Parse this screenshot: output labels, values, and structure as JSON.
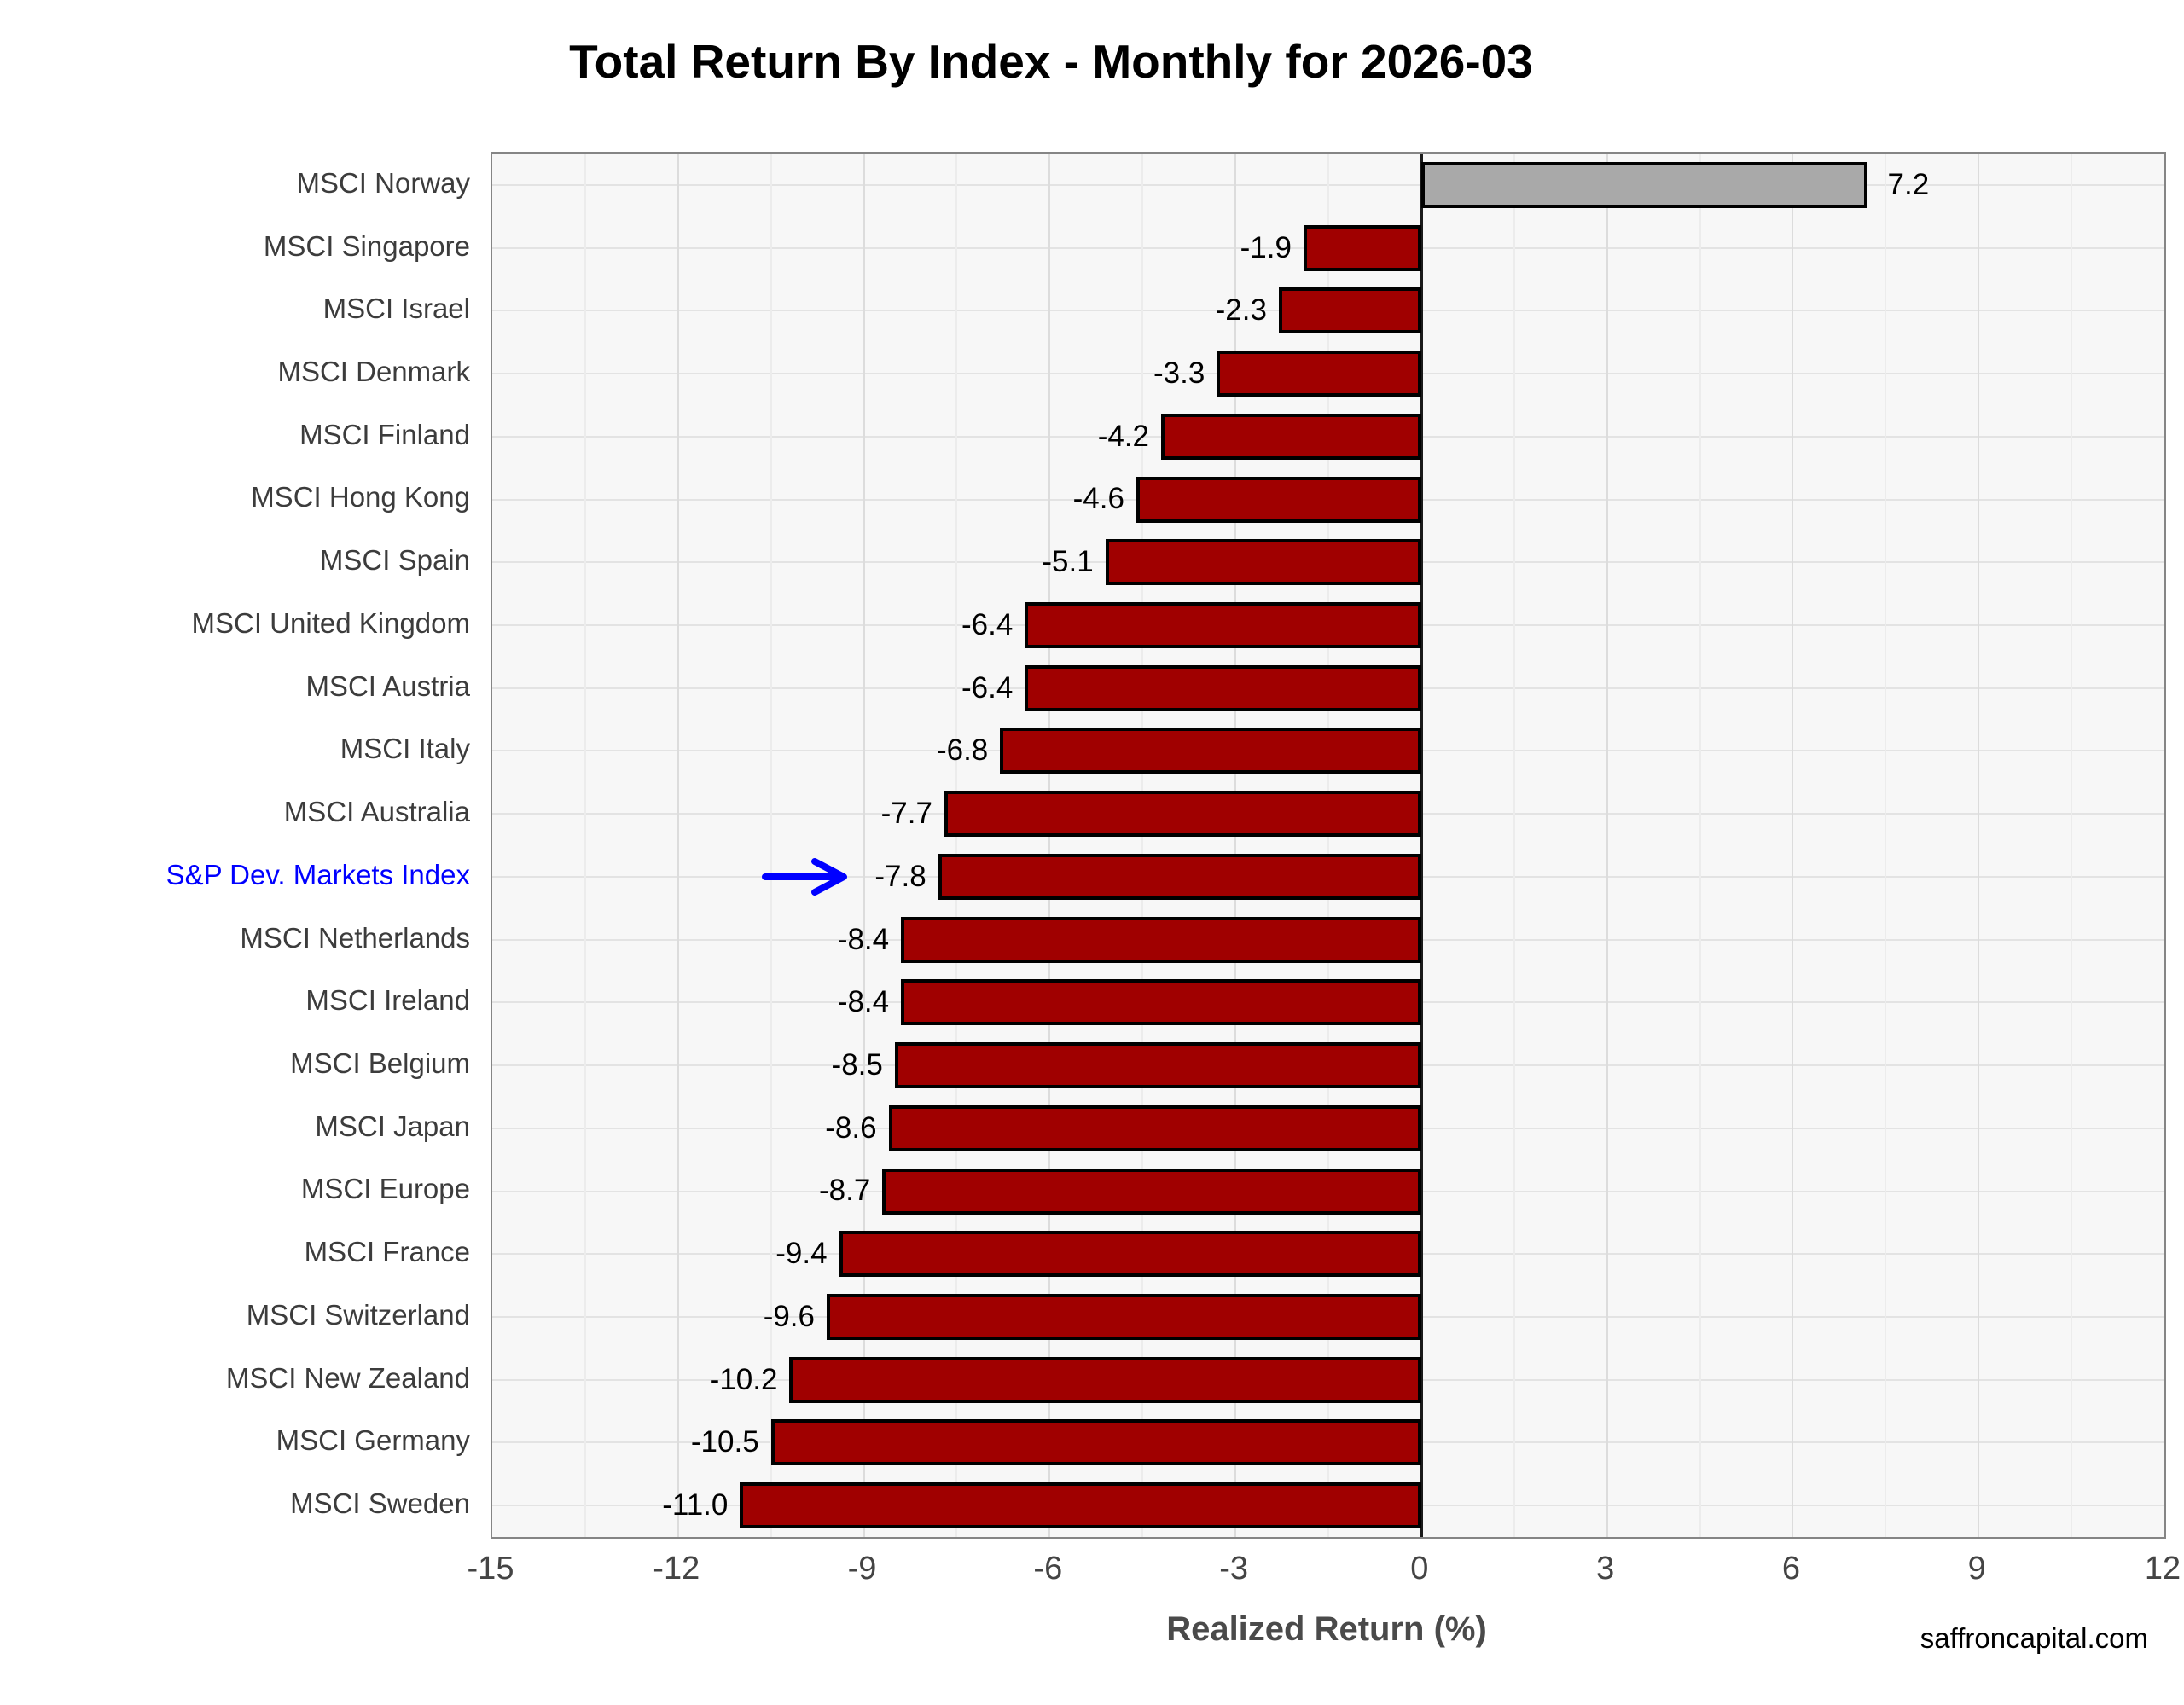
{
  "title": "Total Return By Index - Monthly for 2026-03",
  "footer": "saffroncapital.com",
  "colors": {
    "bar_negative": "#a00000",
    "bar_positive": "#a9a9a9",
    "bar_border": "#000000",
    "highlight_blue": "#0000ff",
    "panel_background": "#f7f7f7",
    "grid_major": "#dcdcdc",
    "grid_minor": "#ececec",
    "axis_text": "#444444",
    "label_text": "#3c3c3c"
  },
  "chart_data": {
    "type": "bar",
    "orientation": "horizontal",
    "title": "Total Return By Index - Monthly for 2026-03",
    "xlabel": "Realized Return (%)",
    "ylabel": "",
    "xlim": [
      -15,
      12
    ],
    "x_ticks": [
      -15,
      -12,
      -9,
      -6,
      -3,
      0,
      3,
      6,
      9,
      12
    ],
    "grid": true,
    "legend": false,
    "categories": [
      "MSCI Norway",
      "MSCI Singapore",
      "MSCI Israel",
      "MSCI Denmark",
      "MSCI Finland",
      "MSCI Hong Kong",
      "MSCI Spain",
      "MSCI United Kingdom",
      "MSCI Austria",
      "MSCI Italy",
      "MSCI Australia",
      "S&P Dev. Markets Index",
      "MSCI Netherlands",
      "MSCI Ireland",
      "MSCI Belgium",
      "MSCI Japan",
      "MSCI Europe",
      "MSCI France",
      "MSCI Switzerland",
      "MSCI New Zealand",
      "MSCI Germany",
      "MSCI Sweden"
    ],
    "values": [
      7.2,
      -1.9,
      -2.3,
      -3.3,
      -4.2,
      -4.6,
      -5.1,
      -6.4,
      -6.4,
      -6.8,
      -7.7,
      -7.8,
      -8.4,
      -8.4,
      -8.5,
      -8.6,
      -8.7,
      -9.4,
      -9.6,
      -10.2,
      -10.5,
      -11.0
    ],
    "value_labels": [
      "7.2",
      "-1.9",
      "-2.3",
      "-3.3",
      "-4.2",
      "-4.6",
      "-5.1",
      "-6.4",
      "-6.4",
      "-6.8",
      "-7.7",
      "-7.8",
      "-8.4",
      "-8.4",
      "-8.5",
      "-8.6",
      "-8.7",
      "-9.4",
      "-9.6",
      "-10.2",
      "-10.5",
      "-11.0"
    ],
    "highlight_index": 11,
    "highlight_label_color": "#0000ff"
  }
}
